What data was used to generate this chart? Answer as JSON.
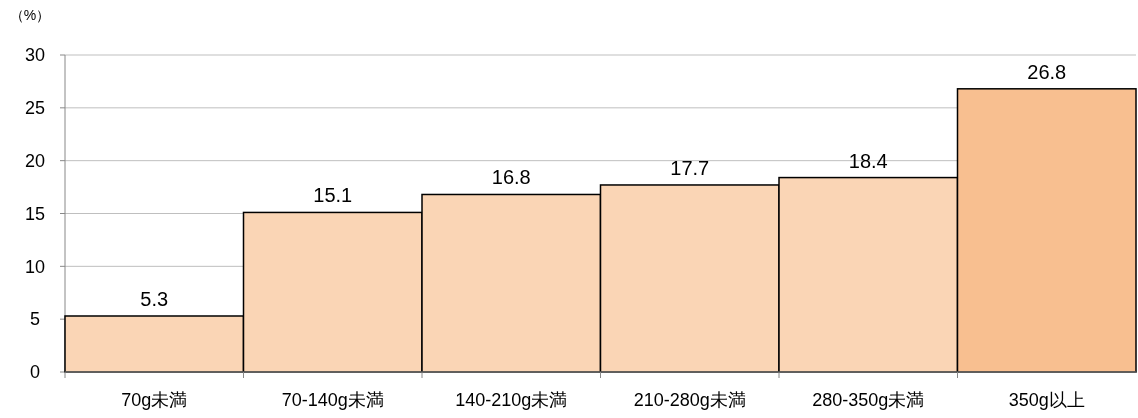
{
  "chart_data": {
    "type": "bar",
    "ylabel": "（%）",
    "categories": [
      "70g未満",
      "70-140g未満",
      "140-210g未満",
      "210-280g未満",
      "280-350g未満",
      "350g以上"
    ],
    "values": [
      5.3,
      15.1,
      16.8,
      17.7,
      18.4,
      26.8
    ],
    "colors": [
      "#fad5b5",
      "#fad5b5",
      "#fad5b5",
      "#fad5b5",
      "#fad5b5",
      "#f8bf90"
    ],
    "ylim": [
      0,
      30
    ],
    "yticks": [
      0,
      5,
      10,
      15,
      20,
      25,
      30
    ],
    "grid": "y",
    "data_labels": true
  }
}
